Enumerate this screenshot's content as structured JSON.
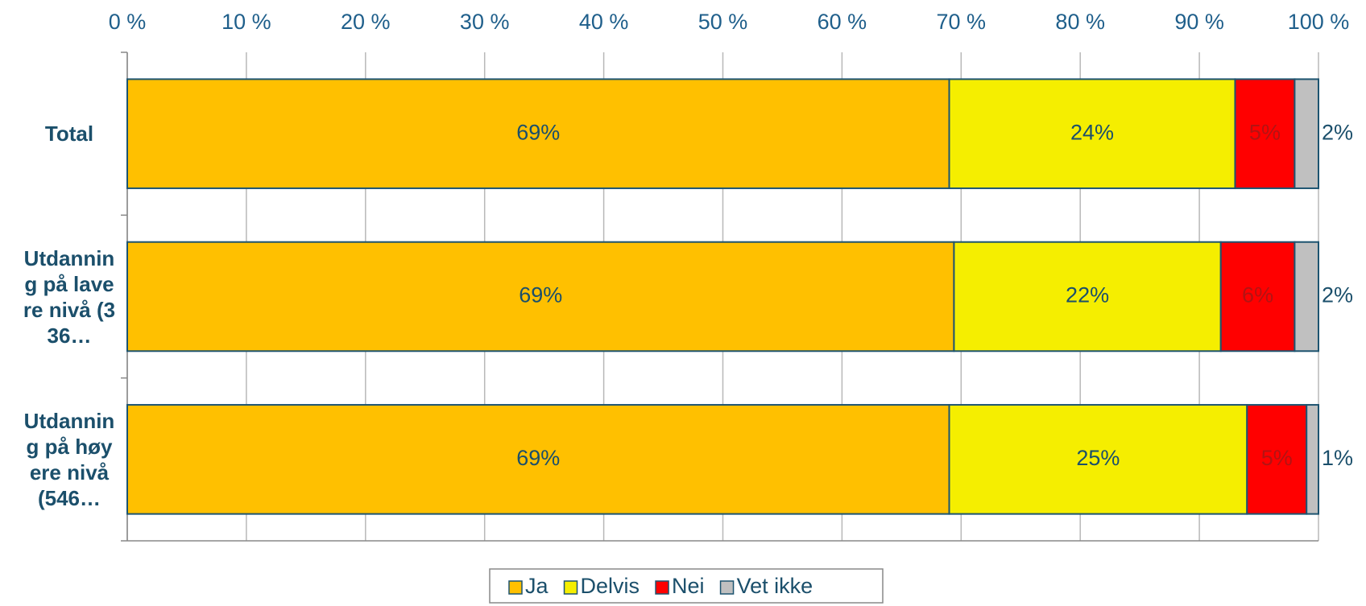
{
  "chart_data": {
    "type": "stacked-bar-horizontal",
    "categories": [
      "Total",
      "Utdanning på lavere nivå (336…",
      "Utdanning på høyere nivå (546…"
    ],
    "series": [
      {
        "name": "Ja",
        "color": "#FFC000",
        "values": [
          69,
          69.4,
          69
        ],
        "value_labels": [
          "69%",
          "69%",
          "69%"
        ]
      },
      {
        "name": "Delvis",
        "color": "#F5EE00",
        "values": [
          24,
          22.4,
          25
        ],
        "value_labels": [
          "24%",
          "22%",
          "25%"
        ]
      },
      {
        "name": "Nei",
        "color": "#FF0000",
        "values": [
          5,
          6.2,
          5
        ],
        "value_labels": [
          "5%",
          "6%",
          "5%"
        ]
      },
      {
        "name": "Vet ikke",
        "color": "#C0C0C0",
        "values": [
          2,
          2,
          1
        ],
        "value_labels": [
          "2%",
          "2%",
          "1%"
        ]
      }
    ],
    "xlim": [
      0,
      100
    ],
    "xticks": [
      {
        "value": 0,
        "label": "0 %"
      },
      {
        "value": 10,
        "label": "10 %"
      },
      {
        "value": 20,
        "label": "20 %"
      },
      {
        "value": 30,
        "label": "30 %"
      },
      {
        "value": 40,
        "label": "40 %"
      },
      {
        "value": 50,
        "label": "50 %"
      },
      {
        "value": 60,
        "label": "60 %"
      },
      {
        "value": 70,
        "label": "70 %"
      },
      {
        "value": 80,
        "label": "80 %"
      },
      {
        "value": 90,
        "label": "90 %"
      },
      {
        "value": 100,
        "label": "100 %"
      }
    ],
    "grid": true,
    "legend": "bottom"
  }
}
